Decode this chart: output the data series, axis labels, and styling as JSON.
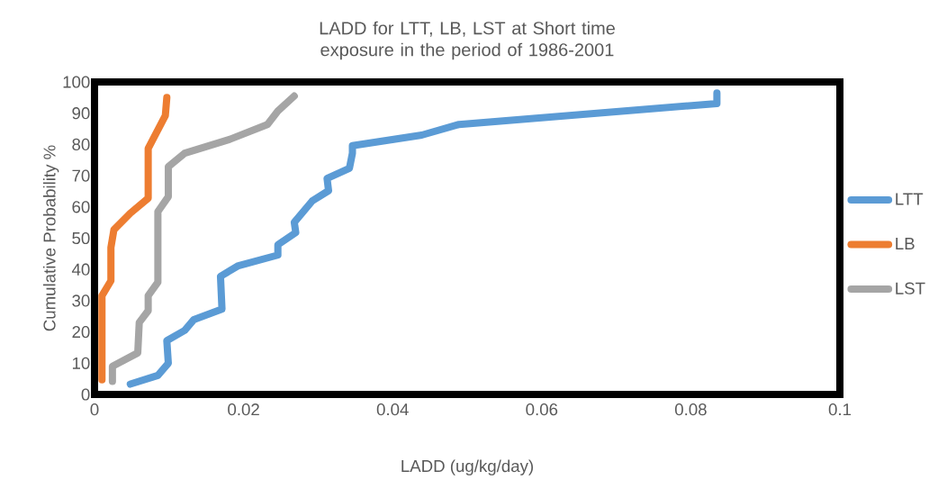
{
  "chart_data": {
    "type": "line",
    "title": "LADD for LTT, LB, LST at Short time exposure in the period of 1986-2001",
    "xlabel": "LADD (ug/kg/day)",
    "ylabel": "Cumulative Probability %",
    "xlim": [
      0,
      0.1
    ],
    "ylim": [
      0,
      100
    ],
    "xticks": [
      0,
      0.02,
      0.04,
      0.06,
      0.08,
      0.1
    ],
    "yticks": [
      0,
      10,
      20,
      30,
      40,
      50,
      60,
      70,
      80,
      90,
      100
    ],
    "legend": "right",
    "series": [
      {
        "name": "LTT",
        "color": "#5b9bd5",
        "x": [
          0.0048,
          0.0085,
          0.0099,
          0.0097,
          0.0121,
          0.0133,
          0.0171,
          0.0169,
          0.0193,
          0.0246,
          0.0246,
          0.027,
          0.0268,
          0.0292,
          0.0314,
          0.0312,
          0.0342,
          0.0346,
          0.0346,
          0.0439,
          0.0489,
          0.0835,
          0.0835
        ],
        "values": [
          3.3,
          6.1,
          10,
          17.2,
          20.5,
          23.9,
          27.3,
          37.8,
          41.2,
          44.6,
          47.9,
          51.8,
          55.1,
          61.9,
          65.2,
          69.1,
          72.4,
          77.2,
          79.6,
          83,
          86.4,
          93.1,
          96.5
        ]
      },
      {
        "name": "LB",
        "color": "#ed7d31",
        "x": [
          0.001,
          0.001,
          0.0022,
          0.0022,
          0.0026,
          0.0048,
          0.0072,
          0.0072,
          0.0095,
          0.0097
        ],
        "values": [
          4.7,
          31.6,
          36.4,
          47,
          52.7,
          58,
          62.8,
          78.7,
          89.2,
          95
        ]
      },
      {
        "name": "LST",
        "color": "#a5a5a5",
        "x": [
          0.0024,
          0.0024,
          0.0058,
          0.006,
          0.0072,
          0.0072,
          0.0085,
          0.0085,
          0.0099,
          0.0099,
          0.0121,
          0.0181,
          0.0232,
          0.0246,
          0.0268
        ],
        "values": [
          4.2,
          9,
          13.3,
          23,
          26.8,
          31.6,
          35.9,
          58.5,
          63.3,
          72.9,
          77.2,
          81.6,
          86.4,
          90.7,
          95.5
        ]
      }
    ]
  }
}
